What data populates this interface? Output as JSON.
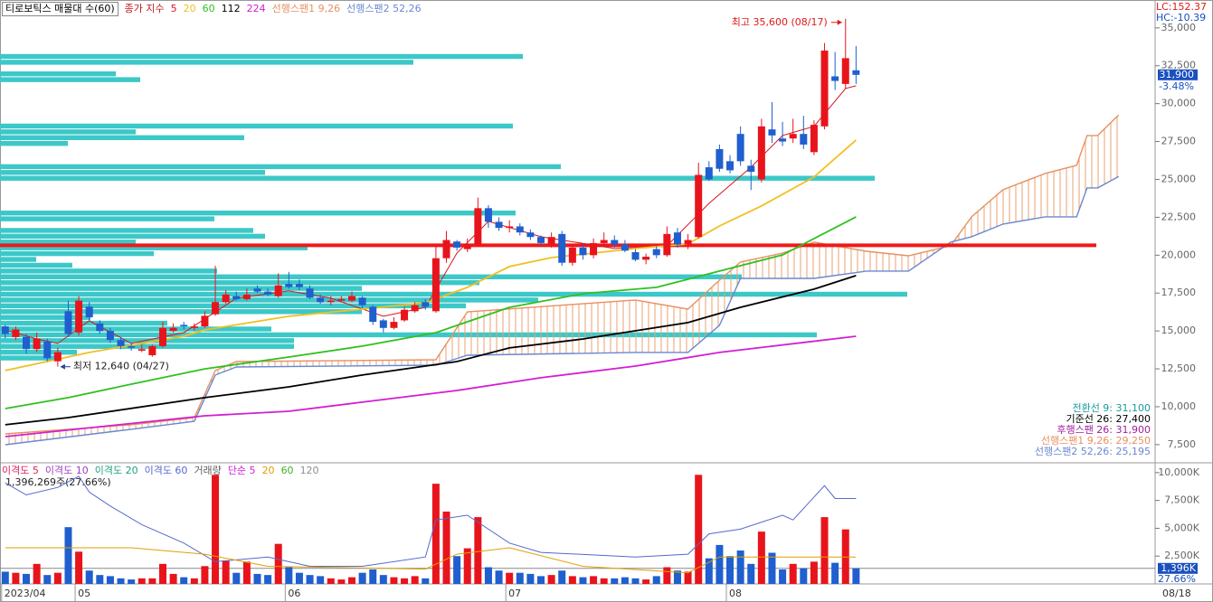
{
  "chart_data": [
    {
      "type": "candlestick",
      "title": "티로보틱스 매물대 수(60)",
      "legend_label": "종가 지수",
      "up_color": "#e8141c",
      "down_color": "#1f5fcf",
      "xlim": [
        -0.5,
        109.3
      ],
      "ylim": [
        6300,
        36600
      ],
      "yticks": [
        {
          "value": 7500,
          "label": "7,500"
        },
        {
          "value": 10000,
          "label": "10,000"
        },
        {
          "value": 12500,
          "label": "12,500"
        },
        {
          "value": 15000,
          "label": "15,000"
        },
        {
          "value": 17500,
          "label": "17,500"
        },
        {
          "value": 20000,
          "label": "20,000"
        },
        {
          "value": 22500,
          "label": "22,500"
        },
        {
          "value": 25000,
          "label": "25,000"
        },
        {
          "value": 27500,
          "label": "27,500"
        },
        {
          "value": 30000,
          "label": "30,000"
        },
        {
          "value": 32500,
          "label": "32,500"
        },
        {
          "value": 35000,
          "label": "35,000"
        }
      ],
      "open": [
        15300,
        14600,
        14600,
        13800,
        14300,
        13000,
        16300,
        14900,
        16600,
        15500,
        15000,
        14400,
        14000,
        13700,
        13400,
        14000,
        15000,
        15400,
        15200,
        15300,
        16100,
        16900,
        17300,
        17100,
        17800,
        17600,
        17300,
        18100,
        18100,
        17800,
        17200,
        16900,
        17000,
        17000,
        17200,
        16600,
        15700,
        15200,
        15700,
        16300,
        16900,
        16300,
        19800,
        20900,
        20400,
        20700,
        23100,
        22200,
        21800,
        21900,
        21500,
        21200,
        20700,
        21400,
        19500,
        20500,
        20000,
        20800,
        21000,
        20700,
        20200,
        19700,
        20400,
        20000,
        21500,
        20700,
        21200,
        25800,
        27000,
        26200,
        28000,
        25900,
        25000,
        28300,
        27700,
        27700,
        28000,
        26800,
        28500,
        31800,
        31300,
        32200
      ],
      "high": [
        15400,
        15300,
        14800,
        14900,
        14500,
        13900,
        17000,
        17300,
        16900,
        15700,
        15200,
        14600,
        14200,
        14100,
        14100,
        15600,
        15500,
        15600,
        15500,
        16300,
        19300,
        17700,
        17600,
        17800,
        18000,
        17800,
        18800,
        18900,
        18400,
        18000,
        17400,
        17300,
        17300,
        17600,
        17300,
        16700,
        15800,
        15900,
        16600,
        16900,
        17100,
        20600,
        21600,
        21000,
        21100,
        23800,
        23300,
        22500,
        22300,
        22100,
        21700,
        21300,
        21500,
        21600,
        20700,
        20700,
        21100,
        21500,
        21300,
        21000,
        20400,
        20100,
        20600,
        21900,
        21800,
        21400,
        26100,
        26200,
        27300,
        26600,
        28500,
        26300,
        29000,
        30100,
        28800,
        29000,
        29200,
        28900,
        34000,
        33400,
        35600,
        33800
      ],
      "low": [
        14500,
        14400,
        13500,
        13600,
        13000,
        12640,
        14600,
        14700,
        15700,
        14800,
        14200,
        13800,
        13700,
        13600,
        13300,
        13900,
        14900,
        15100,
        15000,
        15200,
        16000,
        16800,
        17000,
        17000,
        17500,
        17300,
        17200,
        17800,
        17700,
        17100,
        16800,
        16700,
        16900,
        16900,
        16500,
        15400,
        14900,
        15100,
        15600,
        16200,
        16400,
        16200,
        19500,
        20300,
        20200,
        20600,
        21800,
        21600,
        21500,
        21300,
        21000,
        20600,
        20500,
        19300,
        19300,
        19700,
        19800,
        20600,
        20500,
        20200,
        19600,
        19400,
        19800,
        19900,
        20500,
        20400,
        21100,
        24900,
        25500,
        25400,
        25900,
        24300,
        24800,
        27400,
        27200,
        27400,
        27000,
        26600,
        28300,
        30900,
        31000,
        31300
      ],
      "close": [
        14800,
        15100,
        13800,
        14500,
        13200,
        13600,
        14800,
        17000,
        15900,
        15000,
        14400,
        14000,
        13900,
        13800,
        14000,
        15200,
        15200,
        15300,
        15300,
        16000,
        16900,
        17400,
        17100,
        17400,
        17600,
        17400,
        18000,
        17900,
        17900,
        17200,
        16900,
        17000,
        17100,
        17300,
        16700,
        15600,
        15200,
        15600,
        16400,
        16700,
        16600,
        19800,
        21000,
        20500,
        20700,
        23100,
        22200,
        21800,
        21900,
        21500,
        21200,
        20800,
        21200,
        19500,
        20500,
        20000,
        20800,
        21000,
        20700,
        20300,
        19700,
        19900,
        20000,
        21400,
        20700,
        21000,
        25300,
        25000,
        25700,
        25600,
        26200,
        25500,
        28500,
        27900,
        27500,
        28000,
        27300,
        28600,
        33500,
        31500,
        33000,
        31900
      ],
      "series": [
        {
          "name": "5",
          "color": "#d8141c",
          "x": [
            0,
            3,
            5,
            8,
            12,
            17,
            22,
            27,
            31,
            36,
            40,
            43,
            46,
            51,
            58,
            63,
            67,
            71,
            74,
            77,
            80,
            81
          ],
          "values": [
            15070,
            14470,
            14180,
            15670,
            14180,
            14890,
            17160,
            17640,
            17160,
            15970,
            16560,
            20140,
            22230,
            21220,
            20440,
            20620,
            23420,
            25810,
            27900,
            28500,
            31000,
            31180
          ]
        },
        {
          "name": "20",
          "color": "#f0c020",
          "x": [
            0,
            8,
            17,
            19,
            27,
            34,
            40,
            44,
            48,
            52,
            60,
            65,
            68,
            72,
            77,
            81
          ],
          "values": [
            12390,
            13580,
            14650,
            15070,
            15970,
            16440,
            16860,
            17880,
            19250,
            19840,
            20440,
            20740,
            21930,
            23250,
            25160,
            27600
          ]
        },
        {
          "name": "60",
          "color": "#30c020",
          "x": [
            0,
            6,
            12,
            19,
            27,
            34,
            41,
            48,
            55,
            62,
            68,
            74,
            81
          ],
          "values": [
            9880,
            10600,
            11490,
            12500,
            13280,
            14000,
            14890,
            16560,
            17460,
            17880,
            18950,
            20020,
            22530
          ]
        },
        {
          "name": "112",
          "color": "#000000",
          "x": [
            0,
            6,
            19,
            27,
            34,
            43,
            48,
            55,
            65,
            70,
            77,
            81
          ],
          "values": [
            8810,
            9280,
            10600,
            11310,
            12090,
            12980,
            13880,
            14470,
            15550,
            16560,
            17760,
            18650
          ]
        },
        {
          "name": "224",
          "color": "#d020d0",
          "x": [
            0,
            19,
            27,
            34,
            43,
            51,
            60,
            68,
            81
          ],
          "values": [
            8030,
            9400,
            9700,
            10300,
            11070,
            11910,
            12680,
            13580,
            14650
          ]
        }
      ],
      "spans": [
        {
          "name": "선행스팬1 9,26",
          "color": "#e89060",
          "x": [
            0,
            12,
            18,
            20,
            22,
            41,
            44,
            60,
            65,
            68,
            70,
            74,
            77,
            82,
            86,
            90,
            92,
            95,
            99,
            102,
            103,
            104,
            106
          ],
          "values": [
            8210,
            8810,
            9280,
            12390,
            12980,
            13100,
            16260,
            17040,
            16440,
            18350,
            19550,
            20140,
            20860,
            20260,
            19960,
            20620,
            22530,
            24320,
            25390,
            25930,
            27900,
            27900,
            29250
          ]
        },
        {
          "name": "선행스팬2 52,26",
          "color": "#6a88d0",
          "x": [
            0,
            12,
            18,
            20,
            22,
            41,
            44,
            60,
            65,
            68,
            70,
            74,
            77,
            82,
            86,
            90,
            92,
            95,
            99,
            102,
            103,
            104,
            106
          ],
          "values": [
            7490,
            8510,
            9040,
            12090,
            12620,
            12740,
            13400,
            13580,
            13580,
            15370,
            18470,
            18470,
            18470,
            18950,
            18950,
            20860,
            21220,
            22050,
            22530,
            22530,
            24440,
            24440,
            25195
          ]
        }
      ],
      "volume_profile": {
        "color": "#3cc8c8",
        "range": [
          12640,
          35600
        ],
        "xlim": [
          0,
          127.5
        ],
        "values": [
          0,
          6,
          8.5,
          32.5,
          32.5,
          90.3,
          30,
          18.5,
          10,
          40,
          51.5,
          59.5,
          100.3,
          40,
          53,
          82,
          24,
          8,
          4,
          17,
          34,
          15,
          29.3,
          28,
          0,
          23.7,
          57,
          0,
          0,
          0,
          0,
          0,
          96.7,
          29.3,
          62,
          0,
          0,
          0,
          7.5,
          27,
          15,
          56.7,
          0,
          0,
          0,
          0,
          0,
          0,
          0,
          15.5,
          12.8,
          0,
          45.7,
          57.8,
          0,
          0,
          0,
          0,
          0,
          0
        ]
      },
      "reference_line": {
        "value": 20650,
        "color": "#f01818"
      },
      "annotations": [
        {
          "text": "최고 35,600 (08/17)",
          "x": 80,
          "value": 35600,
          "color": "#e01818"
        },
        {
          "text": "최저 12,640 (04/27)",
          "x": 5,
          "value": 12640,
          "color": "#1f3fa0"
        }
      ],
      "last_price": {
        "value": 31900,
        "label": "31,900",
        "change": "-3.48%"
      },
      "lc": "LC:152.37",
      "hc": "HC:-10.39",
      "ichimoku_labels": [
        {
          "text": "전환선 9: 31,100",
          "color": "#1a9a9a"
        },
        {
          "text": "기준선 26: 27,400",
          "color": "#000000"
        },
        {
          "text": "후행스팬 26: 31,900",
          "color": "#a020a0"
        },
        {
          "text": "선행스팬1 9,26: 29,250",
          "color": "#e89060"
        },
        {
          "text": "선행스팬2 52,26: 25,195",
          "color": "#6a88d0"
        }
      ]
    },
    {
      "type": "bar",
      "info": "1,396,269주(27.66%)",
      "xlim": [
        -0.5,
        109.3
      ],
      "xticks": [
        {
          "value": 0,
          "label": "2023/04"
        },
        {
          "value": 7,
          "label": "05"
        },
        {
          "value": 27,
          "label": "06"
        },
        {
          "value": 48,
          "label": "07"
        },
        {
          "value": 69,
          "label": "08"
        }
      ],
      "last_date": "08/18",
      "ylim": [
        0,
        10800
      ],
      "yticks": [
        {
          "value": 2500,
          "label": "2,500K"
        },
        {
          "value": 5000,
          "label": "5,000K"
        },
        {
          "value": 7500,
          "label": "7,500K"
        },
        {
          "value": 10000,
          "label": "10,000K"
        }
      ],
      "values": [
        1100,
        1000,
        900,
        1800,
        800,
        1000,
        5100,
        2900,
        1200,
        800,
        700,
        500,
        400,
        500,
        500,
        1800,
        900,
        600,
        500,
        1600,
        9800,
        2100,
        1000,
        2000,
        900,
        800,
        3600,
        1500,
        1000,
        800,
        700,
        500,
        400,
        600,
        1000,
        1300,
        800,
        600,
        500,
        700,
        500,
        9000,
        6500,
        2500,
        3200,
        6000,
        1500,
        1200,
        1000,
        1000,
        900,
        700,
        800,
        1200,
        700,
        600,
        700,
        500,
        500,
        600,
        500,
        400,
        700,
        1500,
        1200,
        1100,
        9800,
        2300,
        3500,
        2500,
        3000,
        1800,
        4700,
        2800,
        1300,
        1800,
        1400,
        2000,
        6000,
        1900,
        4900,
        1396
      ],
      "last_volume": {
        "value": 1396,
        "label": "1,396K",
        "ratio": "27.66%"
      },
      "series": [
        {
          "name": "이격도 5",
          "color": "#e0205a"
        },
        {
          "name": "이격도 10",
          "color": "#a040c0"
        },
        {
          "name": "이격도 20",
          "color": "#20a080"
        },
        {
          "name": "이격도 60",
          "color": "#5468d0",
          "x": [
            0,
            2,
            5,
            7,
            8,
            10,
            13,
            17,
            20,
            25,
            29,
            34,
            40,
            41,
            44,
            48,
            51,
            60,
            65,
            67,
            70,
            74,
            75,
            78,
            79,
            81
          ],
          "values": [
            9080,
            8000,
            8670,
            9670,
            8250,
            7000,
            5330,
            3670,
            2000,
            2420,
            1580,
            1580,
            2420,
            5750,
            6170,
            3670,
            2830,
            2420,
            2670,
            4500,
            4920,
            6170,
            5750,
            8830,
            7670,
            7670
          ]
        },
        {
          "name": "거래량",
          "color": "#606060"
        },
        {
          "name": "단순 5",
          "color": "#d020d0"
        },
        {
          "name": "20",
          "color": "#e0a000",
          "x": [
            0,
            12,
            19,
            25,
            40,
            43,
            48,
            55,
            65,
            68,
            81
          ],
          "values": [
            3250,
            3250,
            2670,
            1580,
            1330,
            2670,
            3250,
            1580,
            1000,
            2420,
            2420
          ]
        },
        {
          "name": "60",
          "color": "#40b020"
        },
        {
          "name": "120",
          "color": "#909090"
        }
      ]
    }
  ]
}
